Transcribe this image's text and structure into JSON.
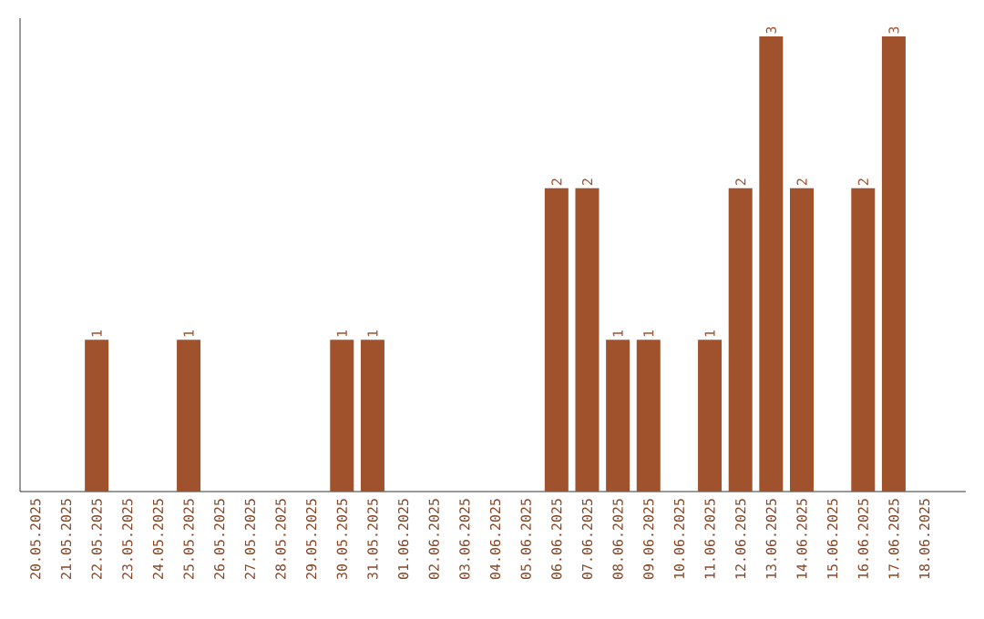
{
  "chart_data": {
    "type": "bar",
    "color": "#a0522d",
    "categories": [
      "20.05.2025",
      "21.05.2025",
      "22.05.2025",
      "23.05.2025",
      "24.05.2025",
      "25.05.2025",
      "26.05.2025",
      "27.05.2025",
      "28.05.2025",
      "29.05.2025",
      "30.05.2025",
      "31.05.2025",
      "01.06.2025",
      "02.06.2025",
      "03.06.2025",
      "04.06.2025",
      "05.06.2025",
      "06.06.2025",
      "07.06.2025",
      "08.06.2025",
      "09.06.2025",
      "10.06.2025",
      "11.06.2025",
      "12.06.2025",
      "13.06.2025",
      "14.06.2025",
      "15.06.2025",
      "16.06.2025",
      "17.06.2025",
      "18.06.2025"
    ],
    "values": [
      0,
      0,
      1,
      0,
      0,
      1,
      0,
      0,
      0,
      0,
      1,
      1,
      0,
      0,
      0,
      0,
      0,
      2,
      2,
      1,
      1,
      0,
      1,
      2,
      3,
      2,
      0,
      2,
      3,
      0
    ],
    "value_labels": [
      null,
      null,
      "1",
      null,
      null,
      "1",
      null,
      null,
      null,
      null,
      "1",
      "1",
      null,
      null,
      null,
      null,
      null,
      "2",
      "2",
      "1",
      "1",
      null,
      "1",
      "2",
      "3",
      "2",
      null,
      "2",
      "3",
      null
    ],
    "data_labels": false
  }
}
